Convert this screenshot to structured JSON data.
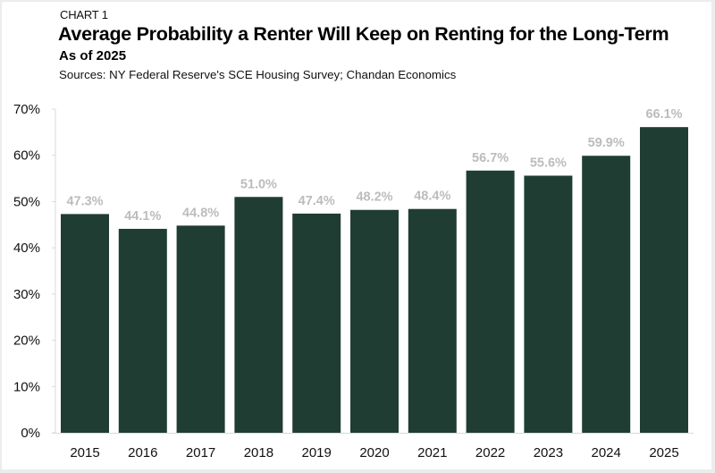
{
  "header": {
    "kicker": "CHART 1",
    "title": "Average Probability a Renter Will Keep on Renting for the Long-Term",
    "subtitle": "As of 2025",
    "source": "Sources: NY Federal Reserve's SCE Housing Survey; Chandan Economics"
  },
  "colors": {
    "bar": "#1f3d33",
    "label": "#bcbcbc",
    "axis": "#d9d9d9"
  },
  "chart_data": {
    "type": "bar",
    "title": "Average Probability a Renter Will Keep on Renting for the Long-Term",
    "subtitle": "As of 2025",
    "xlabel": "",
    "ylabel": "",
    "categories": [
      "2015",
      "2016",
      "2017",
      "2018",
      "2019",
      "2020",
      "2021",
      "2022",
      "2023",
      "2024",
      "2025"
    ],
    "values": [
      47.3,
      44.1,
      44.8,
      51.0,
      47.4,
      48.2,
      48.4,
      56.7,
      55.6,
      59.9,
      66.1
    ],
    "data_labels": [
      "47.3%",
      "44.1%",
      "44.8%",
      "51.0%",
      "47.4%",
      "48.2%",
      "48.4%",
      "56.7%",
      "55.6%",
      "59.9%",
      "66.1%"
    ],
    "ylim": [
      0,
      70
    ],
    "yticks": [
      0,
      10,
      20,
      30,
      40,
      50,
      60,
      70
    ],
    "ytick_labels": [
      "0%",
      "10%",
      "20%",
      "30%",
      "40%",
      "50%",
      "60%",
      "70%"
    ],
    "grid": false,
    "legend": "none"
  }
}
